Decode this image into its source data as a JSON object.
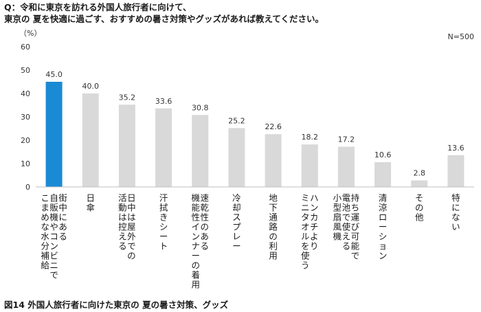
{
  "question": {
    "line1": "Q：令和に東京を訪れる外国人旅行者に向けて、",
    "line2": "東京の 夏を快適に過ごす、おすすめの暑さ対策やグッズがあれば教えてください。"
  },
  "caption": "図14  外国人旅行者に向けた東京の 夏の暑さ対策、グッズ",
  "chart_data": {
    "type": "bar",
    "unit_label": "（%）",
    "sample_size": "N=500",
    "ylim": [
      0,
      60
    ],
    "yticks": [
      0,
      10,
      20,
      30,
      40,
      50,
      60
    ],
    "categories": [
      [
        "こまめな水分補給",
        "自販機やコンビニで",
        "街中にある"
      ],
      [
        "日傘"
      ],
      [
        "活動は控える",
        "日中は屋外での"
      ],
      [
        "汗拭きシート"
      ],
      [
        "機能性インナーの着用",
        "速乾性のある"
      ],
      [
        "冷却スプレー"
      ],
      [
        "地下通路の利用"
      ],
      [
        "ミニタオルを使う",
        "ハンカチより"
      ],
      [
        "小型扇風機",
        "電池で使える",
        "持ち運び可能で"
      ],
      [
        "清涼ローション"
      ],
      [
        "その他"
      ],
      [
        "特にない"
      ]
    ],
    "values": [
      45.0,
      40.0,
      35.2,
      33.6,
      30.8,
      25.2,
      22.6,
      18.2,
      17.2,
      10.6,
      2.8,
      13.6
    ],
    "value_labels": [
      "45.0",
      "40.0",
      "35.2",
      "33.6",
      "30.8",
      "25.2",
      "22.6",
      "18.2",
      "17.2",
      "10.6",
      "2.8",
      "13.6"
    ],
    "highlight_index": 0,
    "colors": {
      "highlight": "#1a8ad4",
      "bar": "#d9d9d9",
      "axis": "#bfbfbf"
    },
    "grid": false,
    "legend": "none"
  }
}
